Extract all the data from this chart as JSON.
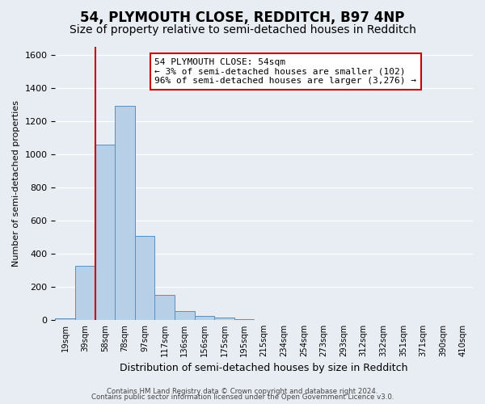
{
  "title": "54, PLYMOUTH CLOSE, REDDITCH, B97 4NP",
  "subtitle": "Size of property relative to semi-detached houses in Redditch",
  "xlabel": "Distribution of semi-detached houses by size in Redditch",
  "ylabel": "Number of semi-detached properties",
  "bin_labels": [
    "19sqm",
    "39sqm",
    "58sqm",
    "78sqm",
    "97sqm",
    "117sqm",
    "136sqm",
    "156sqm",
    "175sqm",
    "195sqm",
    "215sqm",
    "234sqm",
    "254sqm",
    "273sqm",
    "293sqm",
    "312sqm",
    "332sqm",
    "351sqm",
    "371sqm",
    "390sqm",
    "410sqm"
  ],
  "bin_values": [
    10,
    325,
    1060,
    1290,
    505,
    150,
    55,
    25,
    15,
    5,
    0,
    0,
    0,
    0,
    0,
    0,
    0,
    0,
    0,
    0,
    0
  ],
  "bar_color": "#b8cfe8",
  "bar_edge_color": "#5a8fc0",
  "vline_x": 1.5,
  "vline_color": "#cc0000",
  "annotation_title": "54 PLYMOUTH CLOSE: 54sqm",
  "annotation_line1": "← 3% of semi-detached houses are smaller (102)",
  "annotation_line2": "96% of semi-detached houses are larger (3,276) →",
  "annotation_box_edgecolor": "#cc0000",
  "ylim": [
    0,
    1650
  ],
  "yticks": [
    0,
    200,
    400,
    600,
    800,
    1000,
    1200,
    1400,
    1600
  ],
  "footer1": "Contains HM Land Registry data © Crown copyright and database right 2024.",
  "footer2": "Contains public sector information licensed under the Open Government Licence v3.0.",
  "bg_color": "#e8edf4",
  "grid_color": "#ffffff",
  "title_fontsize": 12,
  "subtitle_fontsize": 10,
  "ylabel_fontsize": 8,
  "xlabel_fontsize": 9
}
